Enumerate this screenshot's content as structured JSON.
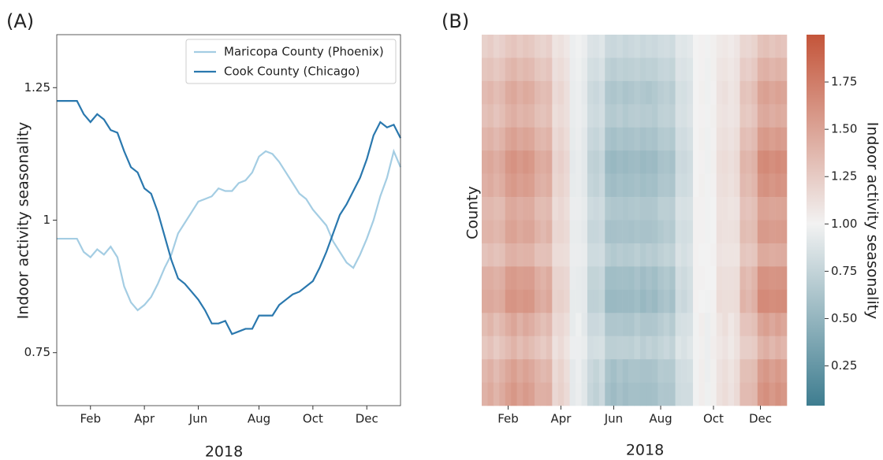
{
  "chart_data": [
    {
      "type": "line",
      "panel": "(A)",
      "ylabel": "Indoor activity seasonality",
      "xlabel": "2018",
      "categories": [
        null,
        null,
        null,
        null,
        null,
        "Feb",
        null,
        null,
        null,
        null,
        null,
        null,
        null,
        "Apr",
        null,
        null,
        null,
        null,
        null,
        null,
        null,
        "Jun",
        null,
        null,
        null,
        null,
        null,
        null,
        null,
        null,
        "Aug",
        null,
        null,
        null,
        null,
        null,
        null,
        null,
        "Oct",
        null,
        null,
        null,
        null,
        null,
        null,
        null,
        "Dec",
        null,
        null,
        null,
        null,
        null
      ],
      "ylim": [
        0.65,
        1.35
      ],
      "yticks": [
        0.75,
        1,
        1.25
      ],
      "legend": "upper right",
      "series": [
        {
          "name": "Maricopa County (Phoenix)",
          "color": "#a4cde3",
          "values": [
            0.965,
            0.965,
            0.965,
            0.965,
            0.94,
            0.93,
            0.945,
            0.935,
            0.95,
            0.93,
            0.875,
            0.845,
            0.83,
            0.84,
            0.855,
            0.88,
            0.91,
            0.935,
            0.975,
            0.995,
            1.015,
            1.035,
            1.04,
            1.045,
            1.06,
            1.055,
            1.055,
            1.07,
            1.075,
            1.09,
            1.12,
            1.13,
            1.125,
            1.11,
            1.09,
            1.07,
            1.05,
            1.04,
            1.02,
            1.005,
            0.99,
            0.96,
            0.94,
            0.92,
            0.91,
            0.935,
            0.965,
            1.0,
            1.045,
            1.08,
            1.13,
            1.1
          ]
        },
        {
          "name": "Cook County (Chicago)",
          "color": "#2a78ae",
          "values": [
            1.225,
            1.225,
            1.225,
            1.225,
            1.2,
            1.185,
            1.2,
            1.19,
            1.17,
            1.165,
            1.13,
            1.1,
            1.09,
            1.06,
            1.05,
            1.015,
            0.97,
            0.925,
            0.89,
            0.88,
            0.865,
            0.85,
            0.83,
            0.805,
            0.805,
            0.81,
            0.785,
            0.79,
            0.795,
            0.795,
            0.82,
            0.82,
            0.82,
            0.84,
            0.85,
            0.86,
            0.865,
            0.875,
            0.885,
            0.91,
            0.94,
            0.975,
            1.01,
            1.03,
            1.055,
            1.08,
            1.115,
            1.16,
            1.185,
            1.175,
            1.18,
            1.155
          ]
        }
      ]
    },
    {
      "type": "heatmap",
      "panel": "(B)",
      "ylabel": "County",
      "xlabel": "2018",
      "categories": [
        null,
        null,
        null,
        null,
        "Feb",
        null,
        null,
        null,
        null,
        null,
        null,
        null,
        null,
        "Apr",
        null,
        null,
        null,
        null,
        null,
        null,
        null,
        null,
        "Jun",
        null,
        null,
        null,
        null,
        null,
        null,
        null,
        "Aug",
        null,
        null,
        null,
        null,
        null,
        null,
        null,
        null,
        "Oct",
        null,
        null,
        null,
        null,
        null,
        null,
        null,
        "Dec",
        null,
        null,
        null,
        null
      ],
      "colorbar": {
        "label": "Indoor activity seasonality",
        "lim": [
          0.04,
          2.0
        ],
        "center": 1,
        "colors": [
          "#3e7d90",
          "#f2f2f2",
          "#c4553a"
        ],
        "ticks": [
          0.25,
          {
            "value": 0.5,
            "label": "0.50"
          },
          0.75,
          {
            "value": 1,
            "label": "1.00"
          },
          1.25,
          {
            "value": 1.5,
            "label": "1.50"
          },
          1.75
        ]
      },
      "values": [
        [
          1.21,
          1.24,
          1.19,
          1.22,
          1.27,
          1.29,
          1.25,
          1.28,
          1.26,
          1.21,
          1.19,
          1.22,
          1.09,
          1.11,
          1.07,
          0.97,
          0.99,
          0.96,
          0.88,
          0.87,
          0.9,
          0.79,
          0.78,
          0.8,
          0.77,
          0.79,
          0.81,
          0.78,
          0.8,
          0.79,
          0.82,
          0.83,
          0.81,
          0.91,
          0.9,
          0.92,
          1.0,
          1.01,
          0.99,
          1.02,
          1.06,
          1.07,
          1.05,
          1.08,
          1.18,
          1.17,
          1.2,
          1.3,
          1.32,
          1.28,
          1.31,
          1.29
        ],
        [
          1.28,
          1.3,
          1.26,
          1.29,
          1.36,
          1.39,
          1.34,
          1.37,
          1.35,
          1.28,
          1.26,
          1.29,
          1.12,
          1.14,
          1.1,
          0.96,
          0.98,
          0.94,
          0.84,
          0.83,
          0.86,
          0.72,
          0.7,
          0.73,
          0.71,
          0.72,
          0.74,
          0.71,
          0.73,
          0.72,
          0.76,
          0.77,
          0.75,
          0.88,
          0.87,
          0.89,
          1.0,
          1.01,
          0.98,
          1.02,
          1.08,
          1.09,
          1.07,
          1.1,
          1.24,
          1.22,
          1.26,
          1.4,
          1.42,
          1.38,
          1.41,
          1.39
        ],
        [
          1.35,
          1.38,
          1.33,
          1.36,
          1.45,
          1.48,
          1.42,
          1.46,
          1.44,
          1.36,
          1.33,
          1.35,
          1.15,
          1.18,
          1.12,
          0.95,
          0.97,
          0.93,
          0.8,
          0.78,
          0.82,
          0.65,
          0.63,
          0.66,
          0.62,
          0.64,
          0.67,
          0.65,
          0.63,
          0.66,
          0.7,
          0.72,
          0.69,
          0.85,
          0.84,
          0.87,
          1.0,
          1.02,
          0.98,
          1.01,
          1.1,
          1.12,
          1.08,
          1.11,
          1.3,
          1.28,
          1.33,
          1.5,
          1.52,
          1.48,
          1.51,
          1.49
        ],
        [
          1.31,
          1.34,
          1.29,
          1.33,
          1.4,
          1.43,
          1.38,
          1.41,
          1.39,
          1.32,
          1.3,
          1.33,
          1.13,
          1.15,
          1.12,
          0.95,
          0.97,
          0.94,
          0.82,
          0.8,
          0.83,
          0.68,
          0.67,
          0.7,
          0.66,
          0.69,
          0.7,
          0.68,
          0.69,
          0.67,
          0.73,
          0.74,
          0.72,
          0.86,
          0.85,
          0.88,
          1.0,
          1.01,
          0.99,
          1.02,
          1.09,
          1.1,
          1.08,
          1.1,
          1.27,
          1.25,
          1.29,
          1.45,
          1.47,
          1.43,
          1.46,
          1.44
        ],
        [
          1.38,
          1.41,
          1.36,
          1.4,
          1.49,
          1.52,
          1.47,
          1.5,
          1.48,
          1.39,
          1.37,
          1.4,
          1.16,
          1.19,
          1.14,
          0.94,
          0.96,
          0.92,
          0.78,
          0.76,
          0.8,
          0.61,
          0.59,
          0.62,
          0.6,
          0.61,
          0.63,
          0.6,
          0.62,
          0.61,
          0.67,
          0.68,
          0.66,
          0.83,
          0.82,
          0.85,
          1.0,
          1.02,
          0.98,
          1.01,
          1.11,
          1.12,
          1.1,
          1.13,
          1.33,
          1.31,
          1.35,
          1.55,
          1.57,
          1.53,
          1.56,
          1.54
        ],
        [
          1.45,
          1.48,
          1.43,
          1.47,
          1.58,
          1.61,
          1.56,
          1.6,
          1.57,
          1.46,
          1.44,
          1.47,
          1.19,
          1.22,
          1.17,
          0.93,
          0.95,
          0.92,
          0.74,
          0.72,
          0.76,
          0.54,
          0.52,
          0.55,
          0.53,
          0.55,
          0.56,
          0.53,
          0.55,
          0.54,
          0.61,
          0.62,
          0.6,
          0.8,
          0.79,
          0.82,
          1.0,
          1.01,
          0.98,
          1.02,
          1.13,
          1.14,
          1.12,
          1.15,
          1.39,
          1.37,
          1.41,
          1.65,
          1.67,
          1.63,
          1.66,
          1.64
        ],
        [
          1.42,
          1.45,
          1.4,
          1.44,
          1.54,
          1.57,
          1.52,
          1.55,
          1.53,
          1.43,
          1.41,
          1.44,
          1.18,
          1.2,
          1.16,
          0.94,
          0.95,
          0.92,
          0.76,
          0.74,
          0.78,
          0.58,
          0.56,
          0.59,
          0.57,
          0.58,
          0.6,
          0.57,
          0.59,
          0.58,
          0.64,
          0.65,
          0.63,
          0.82,
          0.81,
          0.83,
          1.0,
          1.02,
          0.99,
          1.01,
          1.12,
          1.13,
          1.11,
          1.14,
          1.36,
          1.34,
          1.38,
          1.6,
          1.62,
          1.58,
          1.61,
          1.59
        ],
        [
          1.36,
          1.37,
          1.34,
          1.35,
          1.46,
          1.47,
          1.43,
          1.45,
          1.45,
          1.35,
          1.34,
          1.36,
          1.14,
          1.17,
          1.13,
          0.96,
          0.96,
          0.94,
          0.81,
          0.79,
          0.81,
          0.66,
          0.64,
          0.65,
          0.63,
          0.65,
          0.66,
          0.64,
          0.64,
          0.65,
          0.71,
          0.71,
          0.7,
          0.86,
          0.85,
          0.86,
          1.01,
          1.01,
          0.99,
          1.0,
          1.11,
          1.11,
          1.09,
          1.1,
          1.31,
          1.29,
          1.32,
          1.51,
          1.51,
          1.49,
          1.5,
          1.5
        ],
        [
          1.39,
          1.4,
          1.37,
          1.39,
          1.5,
          1.51,
          1.46,
          1.49,
          1.49,
          1.4,
          1.36,
          1.41,
          1.17,
          1.18,
          1.15,
          0.95,
          0.95,
          0.93,
          0.77,
          0.77,
          0.79,
          0.6,
          0.6,
          0.61,
          0.61,
          0.6,
          0.62,
          0.61,
          0.61,
          0.62,
          0.66,
          0.69,
          0.67,
          0.84,
          0.83,
          0.84,
          1.01,
          1.01,
          0.99,
          1.0,
          1.12,
          1.11,
          1.11,
          1.12,
          1.34,
          1.32,
          1.34,
          1.56,
          1.56,
          1.54,
          1.55,
          1.55
        ],
        [
          1.3,
          1.33,
          1.3,
          1.32,
          1.41,
          1.42,
          1.39,
          1.4,
          1.4,
          1.31,
          1.31,
          1.32,
          1.14,
          1.14,
          1.13,
          0.96,
          0.96,
          0.95,
          0.81,
          0.81,
          0.82,
          0.69,
          0.66,
          0.69,
          0.67,
          0.68,
          0.71,
          0.67,
          0.7,
          0.68,
          0.72,
          0.75,
          0.73,
          0.87,
          0.84,
          0.87,
          1.01,
          1.0,
          1.0,
          1.01,
          1.1,
          1.09,
          1.09,
          1.09,
          1.28,
          1.26,
          1.28,
          1.46,
          1.46,
          1.44,
          1.45,
          1.45
        ],
        [
          1.43,
          1.44,
          1.41,
          1.43,
          1.55,
          1.56,
          1.53,
          1.54,
          1.54,
          1.44,
          1.4,
          1.45,
          1.19,
          1.19,
          1.17,
          0.95,
          0.94,
          0.93,
          0.75,
          0.75,
          0.77,
          0.57,
          0.57,
          0.58,
          0.58,
          0.57,
          0.61,
          0.56,
          0.6,
          0.57,
          0.63,
          0.66,
          0.62,
          0.83,
          0.8,
          0.84,
          1.01,
          1.01,
          1.0,
          1.0,
          1.13,
          1.12,
          1.12,
          1.13,
          1.37,
          1.33,
          1.39,
          1.61,
          1.61,
          1.59,
          1.6,
          1.6
        ],
        [
          1.46,
          1.47,
          1.44,
          1.46,
          1.59,
          1.6,
          1.57,
          1.59,
          1.58,
          1.47,
          1.43,
          1.48,
          1.2,
          1.21,
          1.18,
          0.94,
          0.94,
          0.93,
          0.73,
          0.73,
          0.75,
          0.53,
          0.53,
          0.54,
          0.54,
          0.54,
          0.57,
          0.52,
          0.56,
          0.53,
          0.6,
          0.63,
          0.59,
          0.81,
          0.78,
          0.83,
          1.01,
          1.0,
          0.99,
          1.01,
          1.14,
          1.13,
          1.13,
          1.14,
          1.4,
          1.36,
          1.42,
          1.66,
          1.66,
          1.64,
          1.65,
          1.65
        ],
        [
          1.34,
          1.39,
          1.32,
          1.37,
          1.44,
          1.49,
          1.41,
          1.47,
          1.43,
          1.37,
          1.32,
          1.36,
          1.16,
          1.17,
          1.13,
          0.94,
          0.98,
          0.92,
          0.79,
          0.79,
          0.81,
          0.64,
          0.64,
          0.65,
          0.63,
          0.63,
          0.68,
          0.64,
          0.64,
          0.65,
          0.69,
          0.73,
          0.68,
          0.84,
          0.85,
          0.86,
          0.99,
          1.03,
          0.97,
          1.02,
          1.09,
          1.13,
          1.07,
          1.12,
          1.29,
          1.29,
          1.32,
          1.49,
          1.53,
          1.47,
          1.52,
          1.48
        ],
        [
          1.27,
          1.31,
          1.25,
          1.3,
          1.35,
          1.4,
          1.33,
          1.38,
          1.34,
          1.29,
          1.25,
          1.3,
          1.11,
          1.15,
          1.09,
          0.97,
          0.97,
          0.95,
          0.83,
          0.84,
          0.85,
          0.71,
          0.71,
          0.72,
          0.72,
          0.71,
          0.75,
          0.7,
          0.74,
          0.71,
          0.75,
          0.78,
          0.74,
          0.89,
          0.86,
          0.9,
          0.99,
          1.02,
          0.97,
          1.03,
          1.07,
          1.1,
          1.06,
          1.11,
          1.23,
          1.23,
          1.25,
          1.39,
          1.43,
          1.37,
          1.42,
          1.38
        ],
        [
          1.37,
          1.42,
          1.35,
          1.41,
          1.48,
          1.53,
          1.46,
          1.51,
          1.47,
          1.4,
          1.36,
          1.39,
          1.15,
          1.2,
          1.13,
          0.93,
          0.97,
          0.91,
          0.79,
          0.75,
          0.81,
          0.62,
          0.58,
          0.63,
          0.59,
          0.62,
          0.62,
          0.61,
          0.61,
          0.62,
          0.68,
          0.67,
          0.67,
          0.82,
          0.83,
          0.84,
          0.99,
          1.03,
          0.97,
          1.02,
          1.1,
          1.13,
          1.09,
          1.14,
          1.32,
          1.32,
          1.34,
          1.54,
          1.58,
          1.52,
          1.57,
          1.53
        ],
        [
          1.41,
          1.46,
          1.39,
          1.45,
          1.53,
          1.58,
          1.51,
          1.56,
          1.52,
          1.42,
          1.42,
          1.43,
          1.17,
          1.21,
          1.15,
          0.93,
          0.96,
          0.91,
          0.77,
          0.73,
          0.79,
          0.59,
          0.55,
          0.6,
          0.56,
          0.59,
          0.59,
          0.58,
          0.58,
          0.59,
          0.65,
          0.64,
          0.64,
          0.81,
          0.82,
          0.82,
          0.99,
          1.03,
          0.98,
          1.02,
          1.11,
          1.14,
          1.1,
          1.15,
          1.35,
          1.35,
          1.37,
          1.59,
          1.63,
          1.57,
          1.62,
          1.58
        ]
      ]
    }
  ]
}
